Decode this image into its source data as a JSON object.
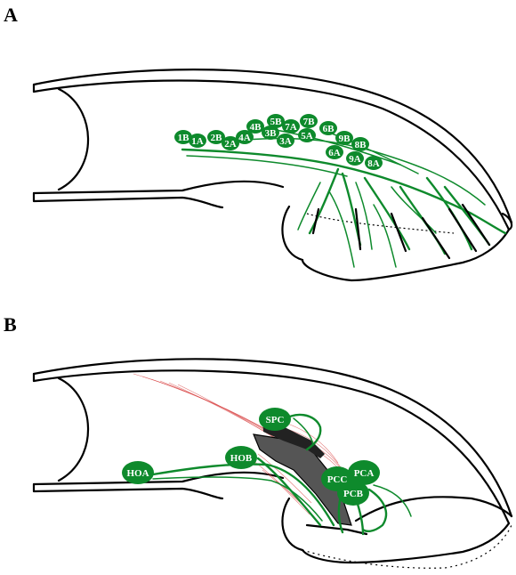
{
  "panels": [
    {
      "letter": "A",
      "nodes": [
        {
          "id": "1B",
          "label": "1B"
        },
        {
          "id": "1A",
          "label": "1A"
        },
        {
          "id": "2B",
          "label": "2B"
        },
        {
          "id": "2A",
          "label": "2A"
        },
        {
          "id": "4A",
          "label": "4A"
        },
        {
          "id": "4B",
          "label": "4B"
        },
        {
          "id": "3B",
          "label": "3B"
        },
        {
          "id": "5B",
          "label": "5B"
        },
        {
          "id": "3A",
          "label": "3A"
        },
        {
          "id": "7A",
          "label": "7A"
        },
        {
          "id": "7B",
          "label": "7B"
        },
        {
          "id": "5A",
          "label": "5A"
        },
        {
          "id": "6B",
          "label": "6B"
        },
        {
          "id": "9B",
          "label": "9B"
        },
        {
          "id": "8B",
          "label": "8B"
        },
        {
          "id": "6A",
          "label": "6A"
        },
        {
          "id": "9A",
          "label": "9A"
        },
        {
          "id": "8A",
          "label": "8A"
        }
      ]
    },
    {
      "letter": "B",
      "nodes": [
        {
          "id": "HOA",
          "label": "HOA"
        },
        {
          "id": "HOB",
          "label": "HOB"
        },
        {
          "id": "SPC",
          "label": "SPC"
        },
        {
          "id": "PCA",
          "label": "PCA"
        },
        {
          "id": "PCC",
          "label": "PCC"
        },
        {
          "id": "PCB",
          "label": "PCB"
        }
      ]
    }
  ],
  "colors": {
    "nerve": "#0e8a2c",
    "muscle": "#d94a4a",
    "outline": "#000000",
    "apodeme": "#555555"
  }
}
